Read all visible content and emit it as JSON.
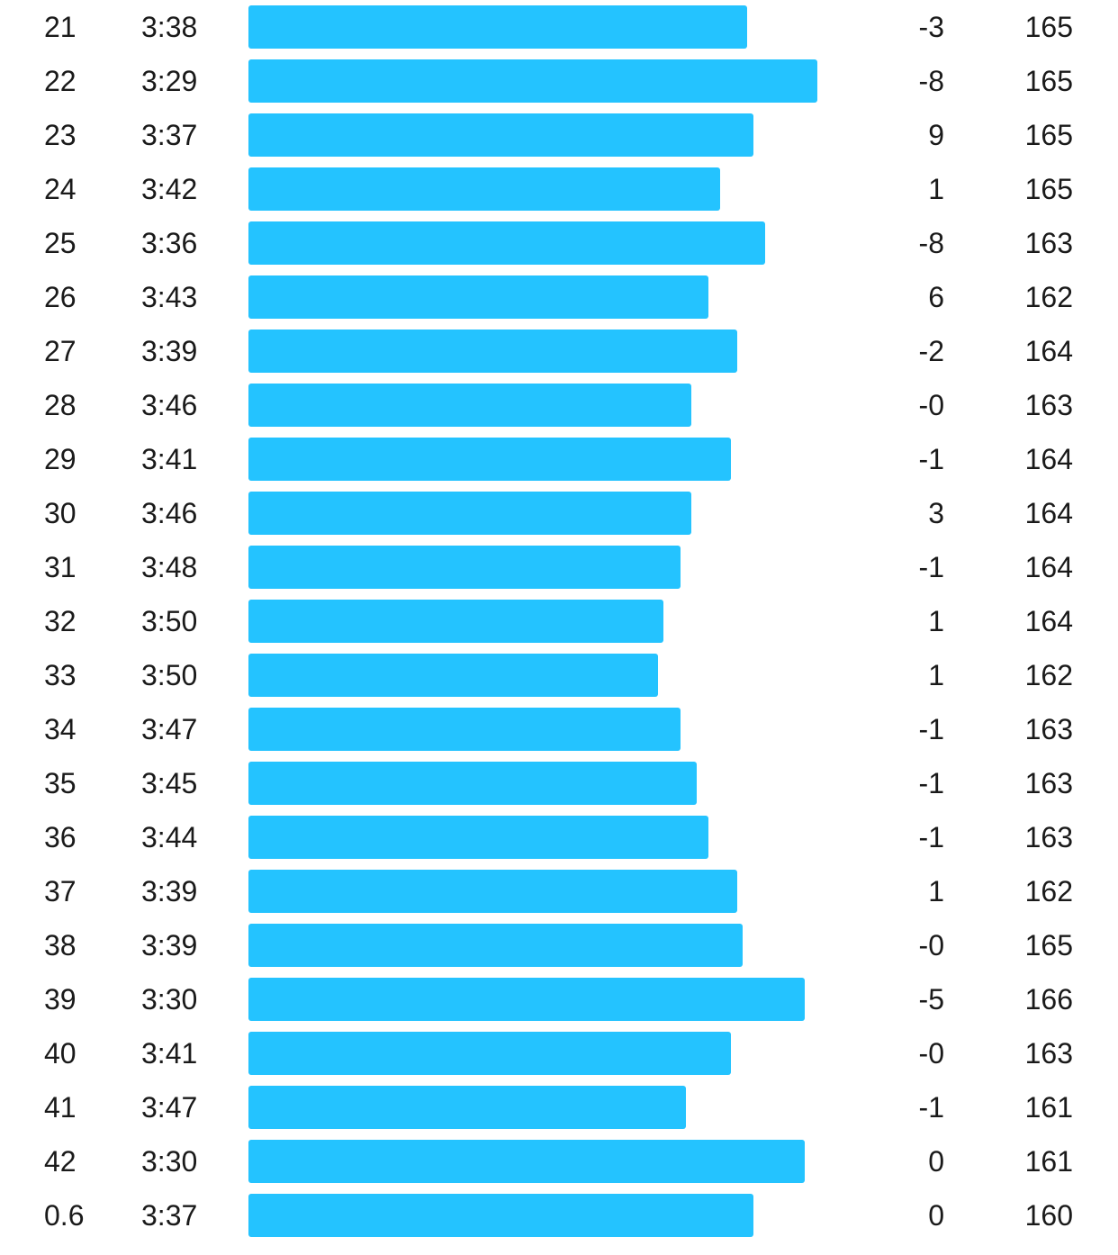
{
  "bar_color": "#24c3ff",
  "splits": [
    {
      "km": "21",
      "pace": "3:38",
      "elev": "-3",
      "hr": "165",
      "bar_fraction": 0.574
    },
    {
      "km": "22",
      "pace": "3:29",
      "elev": "-8",
      "hr": "165",
      "bar_fraction": 0.654
    },
    {
      "km": "23",
      "pace": "3:37",
      "elev": "9",
      "hr": "165",
      "bar_fraction": 0.581
    },
    {
      "km": "24",
      "pace": "3:42",
      "elev": "1",
      "hr": "165",
      "bar_fraction": 0.542
    },
    {
      "km": "25",
      "pace": "3:36",
      "elev": "-8",
      "hr": "163",
      "bar_fraction": 0.594
    },
    {
      "km": "26",
      "pace": "3:43",
      "elev": "6",
      "hr": "162",
      "bar_fraction": 0.529
    },
    {
      "km": "27",
      "pace": "3:39",
      "elev": "-2",
      "hr": "164",
      "bar_fraction": 0.562
    },
    {
      "km": "28",
      "pace": "3:46",
      "elev": "-0",
      "hr": "163",
      "bar_fraction": 0.509
    },
    {
      "km": "29",
      "pace": "3:41",
      "elev": "-1",
      "hr": "164",
      "bar_fraction": 0.555
    },
    {
      "km": "30",
      "pace": "3:46",
      "elev": "3",
      "hr": "164",
      "bar_fraction": 0.509
    },
    {
      "km": "31",
      "pace": "3:48",
      "elev": "-1",
      "hr": "164",
      "bar_fraction": 0.497
    },
    {
      "km": "32",
      "pace": "3:50",
      "elev": "1",
      "hr": "164",
      "bar_fraction": 0.477
    },
    {
      "km": "33",
      "pace": "3:50",
      "elev": "1",
      "hr": "162",
      "bar_fraction": 0.471
    },
    {
      "km": "34",
      "pace": "3:47",
      "elev": "-1",
      "hr": "163",
      "bar_fraction": 0.497
    },
    {
      "km": "35",
      "pace": "3:45",
      "elev": "-1",
      "hr": "163",
      "bar_fraction": 0.516
    },
    {
      "km": "36",
      "pace": "3:44",
      "elev": "-1",
      "hr": "163",
      "bar_fraction": 0.529
    },
    {
      "km": "37",
      "pace": "3:39",
      "elev": "1",
      "hr": "162",
      "bar_fraction": 0.562
    },
    {
      "km": "38",
      "pace": "3:39",
      "elev": "-0",
      "hr": "165",
      "bar_fraction": 0.568
    },
    {
      "km": "39",
      "pace": "3:30",
      "elev": "-5",
      "hr": "166",
      "bar_fraction": 0.64
    },
    {
      "km": "40",
      "pace": "3:41",
      "elev": "-0",
      "hr": "163",
      "bar_fraction": 0.555
    },
    {
      "km": "41",
      "pace": "3:47",
      "elev": "-1",
      "hr": "161",
      "bar_fraction": 0.503
    },
    {
      "km": "42",
      "pace": "3:30",
      "elev": "0",
      "hr": "161",
      "bar_fraction": 0.64
    },
    {
      "km": "0.6",
      "pace": "3:37",
      "elev": "0",
      "hr": "160",
      "bar_fraction": 0.581
    }
  ]
}
